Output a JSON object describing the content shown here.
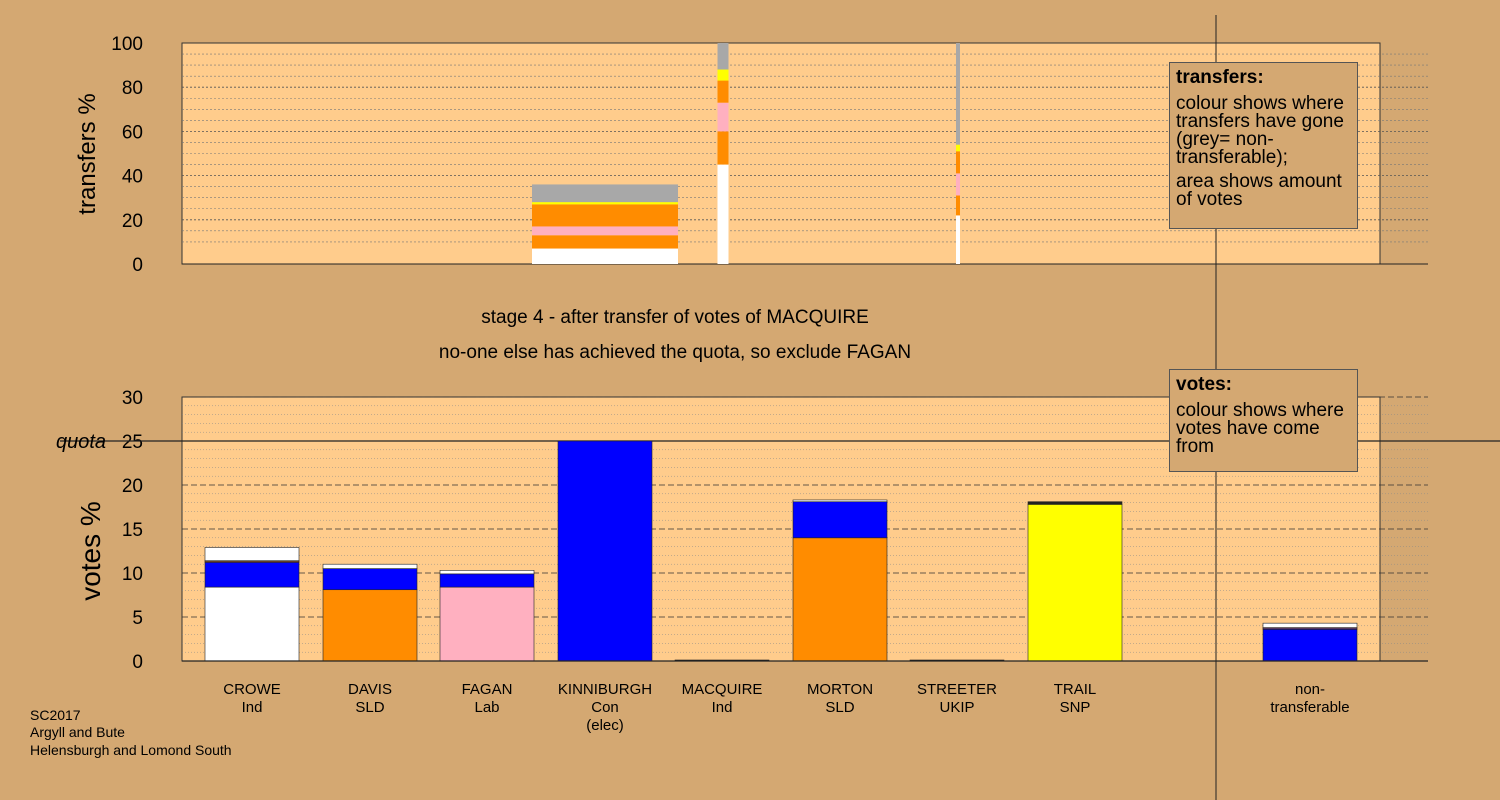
{
  "colors": {
    "background": "#d4a872",
    "plot_bg": "#ffcc8c",
    "Ind_white": "#ffffff",
    "SLD": "#ff8c00",
    "Lab": "#ffb0c0",
    "Con": "#0000ff",
    "SNP": "#ffff00",
    "non_transferable": "#a8a8a8",
    "UKIP": "#9b30ff",
    "dark": "#222222"
  },
  "titles": {
    "line1": "stage 4 - after transfer of votes of MACQUIRE",
    "line2": "no-one else has achieved the quota, so exclude FAGAN"
  },
  "legend_transfers": {
    "title": "transfers:",
    "p1": "colour shows where transfers have gone (grey= non-transferable);",
    "p2": "area shows amount of votes"
  },
  "legend_votes": {
    "title": "votes:",
    "p1": "colour shows where votes have come from"
  },
  "footer": {
    "line1": "SC2017",
    "line2": "Argyll and Bute",
    "line3": "Helensburgh and Lomond South"
  },
  "chart_data": [
    {
      "type": "bar",
      "name": "transfers",
      "ylabel": "transfers %",
      "ylim": [
        0,
        100
      ],
      "yticks": [
        0,
        20,
        40,
        60,
        80,
        100
      ],
      "bars": [
        {
          "x": 605,
          "width": 146,
          "segments": [
            {
              "color": "Ind_white",
              "value": 7
            },
            {
              "color": "SLD",
              "value": 6
            },
            {
              "color": "Lab",
              "value": 4
            },
            {
              "color": "SLD",
              "value": 10
            },
            {
              "color": "SNP",
              "value": 1
            },
            {
              "color": "non_transferable",
              "value": 8
            }
          ]
        },
        {
          "x": 723,
          "width": 11,
          "segments": [
            {
              "color": "Ind_white",
              "value": 45
            },
            {
              "color": "SLD",
              "value": 15
            },
            {
              "color": "Lab",
              "value": 13
            },
            {
              "color": "SLD",
              "value": 10
            },
            {
              "color": "SNP",
              "value": 5
            },
            {
              "color": "non_transferable",
              "value": 12
            }
          ]
        },
        {
          "x": 958,
          "width": 4,
          "segments": [
            {
              "color": "Ind_white",
              "value": 22
            },
            {
              "color": "SLD",
              "value": 9
            },
            {
              "color": "Lab",
              "value": 10
            },
            {
              "color": "SLD",
              "value": 10
            },
            {
              "color": "SNP",
              "value": 3
            },
            {
              "color": "non_transferable",
              "value": 46
            }
          ]
        }
      ]
    },
    {
      "type": "bar",
      "name": "votes",
      "ylabel": "votes %",
      "ylim": [
        0,
        30
      ],
      "yticks": [
        0,
        5,
        10,
        15,
        20,
        25,
        30
      ],
      "quota": 25,
      "quota_label": "quota",
      "candidates": [
        {
          "name": "CROWE",
          "party": "Ind",
          "extra": "",
          "segments": [
            {
              "color": "Ind_white",
              "value": 8.4
            },
            {
              "color": "Con",
              "value": 2.8
            },
            {
              "color": "UKIP",
              "value": 0.1
            },
            {
              "color": "SLD",
              "value": 0.1
            },
            {
              "color": "Ind_white",
              "value": 1.5
            }
          ]
        },
        {
          "name": "DAVIS",
          "party": "SLD",
          "extra": "",
          "segments": [
            {
              "color": "SLD",
              "value": 8.1
            },
            {
              "color": "Con",
              "value": 2.4
            },
            {
              "color": "Ind_white",
              "value": 0.5
            }
          ]
        },
        {
          "name": "FAGAN",
          "party": "Lab",
          "extra": "",
          "segments": [
            {
              "color": "Lab",
              "value": 8.4
            },
            {
              "color": "Con",
              "value": 1.5
            },
            {
              "color": "Ind_white",
              "value": 0.4
            }
          ]
        },
        {
          "name": "KINNIBURGH",
          "party": "Con",
          "extra": "(elec)",
          "segments": [
            {
              "color": "Con",
              "value": 25.0
            }
          ]
        },
        {
          "name": "MACQUIRE",
          "party": "Ind",
          "extra": "",
          "segments": [
            {
              "color": "dark",
              "value": 0.05
            }
          ]
        },
        {
          "name": "MORTON",
          "party": "SLD",
          "extra": "",
          "segments": [
            {
              "color": "SLD",
              "value": 14.0
            },
            {
              "color": "Con",
              "value": 4.1
            },
            {
              "color": "Ind_white",
              "value": 0.2
            }
          ]
        },
        {
          "name": "STREETER",
          "party": "UKIP",
          "extra": "",
          "segments": [
            {
              "color": "dark",
              "value": 0.05
            }
          ]
        },
        {
          "name": "TRAIL",
          "party": "SNP",
          "extra": "",
          "segments": [
            {
              "color": "SNP",
              "value": 17.8
            },
            {
              "color": "dark",
              "value": 0.3
            }
          ]
        },
        {
          "name": "non-",
          "party": "transferable",
          "extra": "",
          "segments": [
            {
              "color": "Con",
              "value": 3.6
            },
            {
              "color": "UKIP",
              "value": 0.1
            },
            {
              "color": "Lab",
              "value": 0.1
            },
            {
              "color": "Ind_white",
              "value": 0.5
            }
          ]
        }
      ]
    }
  ]
}
